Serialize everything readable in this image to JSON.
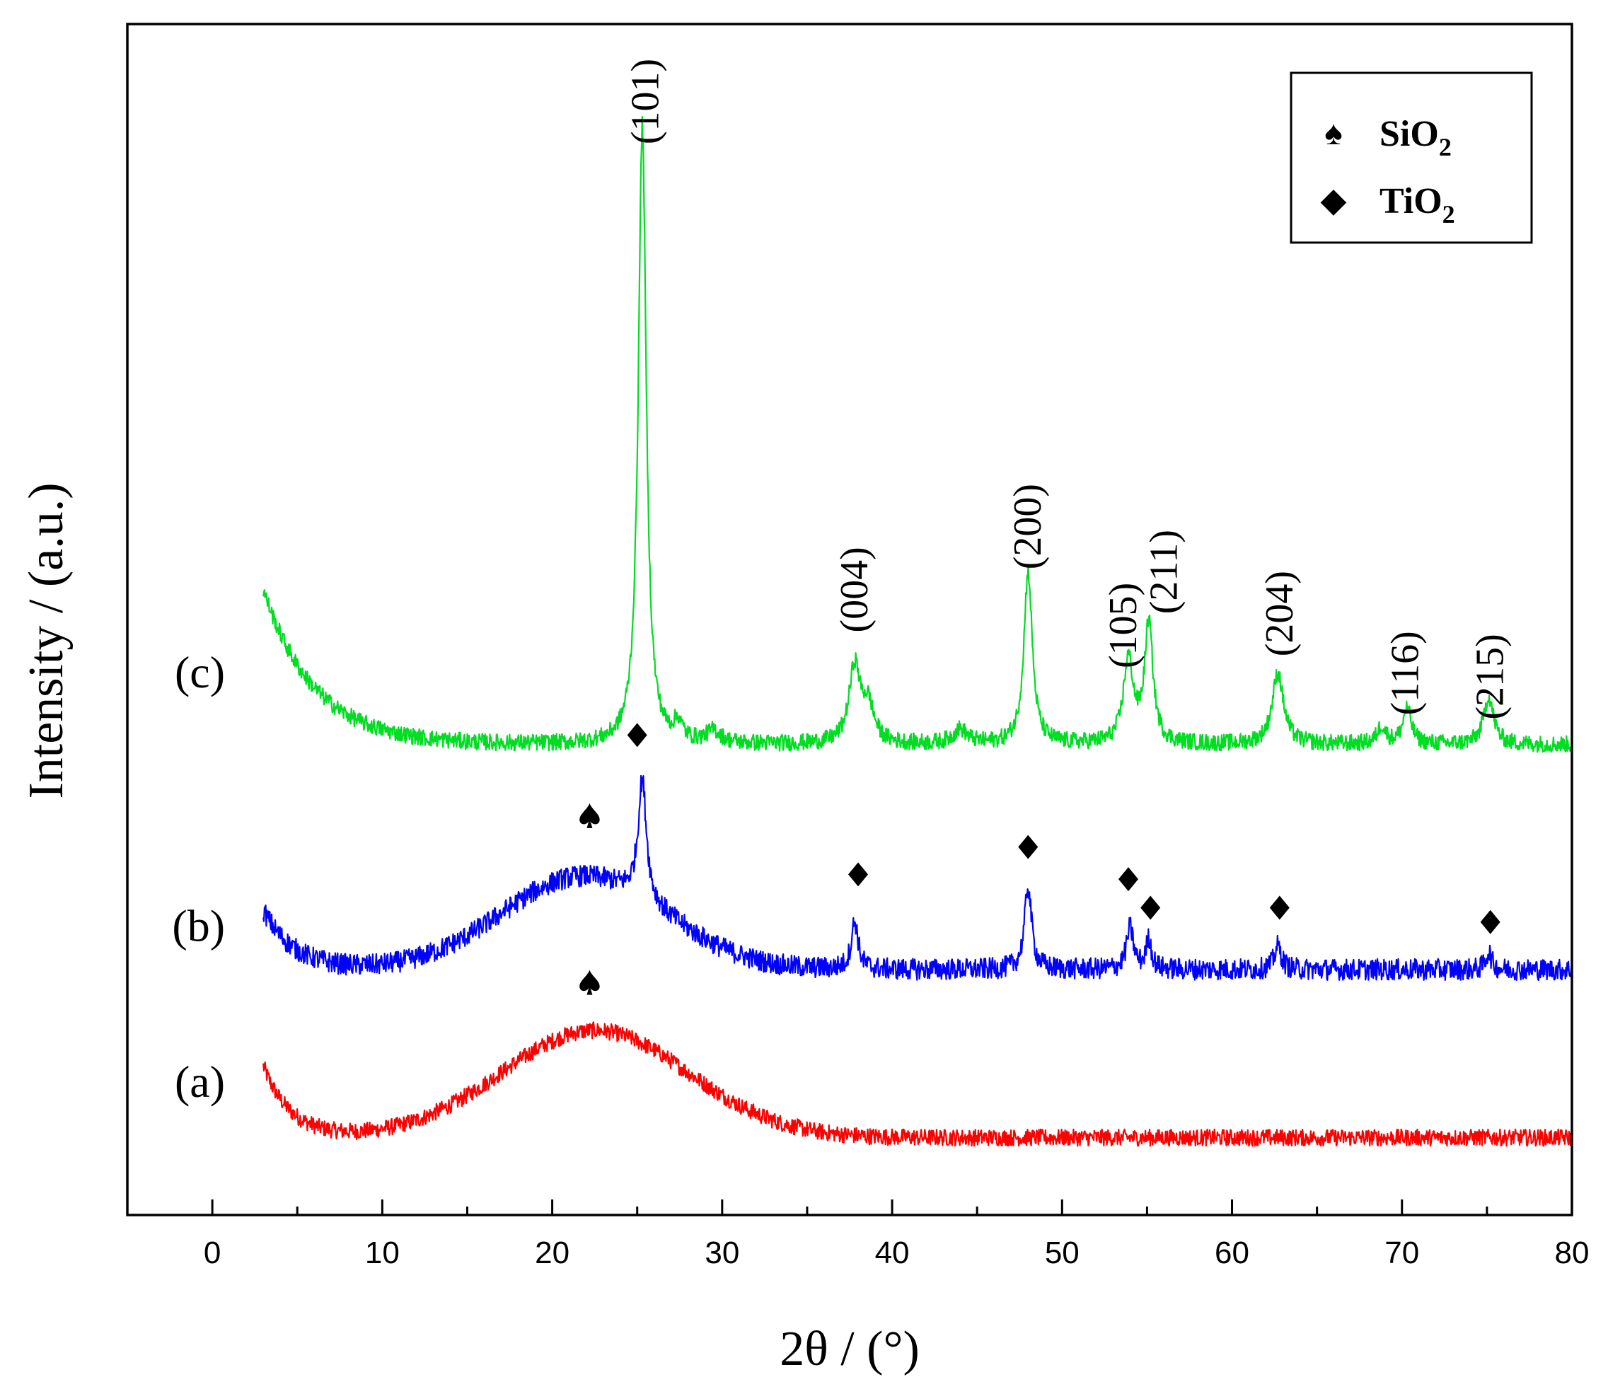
{
  "chart_data": {
    "type": "line",
    "title": "",
    "xlabel": "2θ / (°)",
    "ylabel": "Intensity / (a.u.)",
    "xlim": [
      -5,
      80
    ],
    "ylim": [
      0,
      100
    ],
    "xticks": [
      0,
      10,
      20,
      30,
      40,
      50,
      60,
      70,
      80
    ],
    "x_range_data": [
      3,
      80
    ],
    "grid": false,
    "legend_position": "top-right",
    "legend": [
      {
        "symbol": "♠",
        "label": "SiO",
        "sub": "2",
        "name": "SiO2"
      },
      {
        "symbol": "◆",
        "label": "TiO",
        "sub": "2",
        "name": "TiO2"
      }
    ],
    "series": [
      {
        "name": "(a)",
        "label": "(a)",
        "color": "#ff0000",
        "baseline": 6.5,
        "noise": 0.7,
        "components": [
          {
            "kind": "start_tail",
            "amp": 6.0,
            "decay": 1.6
          },
          {
            "kind": "gauss",
            "center": 22.5,
            "amp": 9.0,
            "width": 5.5
          }
        ],
        "markers": [
          {
            "x": 22.2,
            "y": 19.5,
            "symbol": "spade"
          }
        ]
      },
      {
        "name": "(b)",
        "label": "(b)",
        "color": "#0000ff",
        "baseline": 20.6,
        "noise": 0.9,
        "components": [
          {
            "kind": "start_tail",
            "amp": 5.0,
            "decay": 1.8
          },
          {
            "kind": "gauss",
            "center": 21.8,
            "amp": 7.8,
            "width": 4.8
          },
          {
            "kind": "peak",
            "center": 25.3,
            "amp": 10.0,
            "width": 0.3
          },
          {
            "kind": "peak",
            "center": 37.8,
            "amp": 4.0,
            "width": 0.25
          },
          {
            "kind": "peak",
            "center": 48.0,
            "amp": 7.0,
            "width": 0.25
          },
          {
            "kind": "peak",
            "center": 54.0,
            "amp": 3.5,
            "width": 0.25
          },
          {
            "kind": "peak",
            "center": 55.1,
            "amp": 2.5,
            "width": 0.2
          },
          {
            "kind": "peak",
            "center": 62.7,
            "amp": 2.0,
            "width": 0.25
          },
          {
            "kind": "peak",
            "center": 75.1,
            "amp": 1.5,
            "width": 0.2
          }
        ],
        "markers": [
          {
            "x": 22.2,
            "y": 33.5,
            "symbol": "spade"
          },
          {
            "x": 25.0,
            "y": 40.3,
            "symbol": "diamond"
          },
          {
            "x": 38.0,
            "y": 28.6,
            "symbol": "diamond"
          },
          {
            "x": 48.0,
            "y": 30.9,
            "symbol": "diamond"
          },
          {
            "x": 53.9,
            "y": 28.2,
            "symbol": "diamond"
          },
          {
            "x": 55.2,
            "y": 25.8,
            "symbol": "diamond"
          },
          {
            "x": 62.8,
            "y": 25.8,
            "symbol": "diamond"
          },
          {
            "x": 75.2,
            "y": 24.6,
            "symbol": "diamond"
          }
        ]
      },
      {
        "name": "(c)",
        "label": "(c)",
        "color": "#00dd22",
        "baseline": 39.5,
        "noise": 0.7,
        "components": [
          {
            "kind": "start_tail",
            "amp": 13.0,
            "decay": 3.0
          },
          {
            "kind": "peak",
            "center": 25.3,
            "amp": 52.0,
            "width": 0.28
          },
          {
            "kind": "peak",
            "center": 27.4,
            "amp": 1.5,
            "width": 0.3
          },
          {
            "kind": "peak",
            "center": 29.5,
            "amp": 1.0,
            "width": 0.5
          },
          {
            "kind": "peak",
            "center": 37.8,
            "amp": 6.5,
            "width": 0.4
          },
          {
            "kind": "peak",
            "center": 38.6,
            "amp": 3.0,
            "width": 0.4
          },
          {
            "kind": "peak",
            "center": 44.0,
            "amp": 1.2,
            "width": 0.5
          },
          {
            "kind": "peak",
            "center": 48.0,
            "amp": 14.5,
            "width": 0.3
          },
          {
            "kind": "peak",
            "center": 53.9,
            "amp": 7.0,
            "width": 0.35
          },
          {
            "kind": "peak",
            "center": 55.1,
            "amp": 10.0,
            "width": 0.3
          },
          {
            "kind": "peak",
            "center": 62.7,
            "amp": 6.0,
            "width": 0.4
          },
          {
            "kind": "peak",
            "center": 68.8,
            "amp": 1.5,
            "width": 0.3
          },
          {
            "kind": "peak",
            "center": 70.3,
            "amp": 3.0,
            "width": 0.3
          },
          {
            "kind": "peak",
            "center": 75.1,
            "amp": 4.0,
            "width": 0.35
          }
        ],
        "markers": []
      }
    ],
    "annotations": [
      {
        "text": "(101)",
        "x": 25.5,
        "y": 93.5
      },
      {
        "text": "(004)",
        "x": 37.8,
        "y": 52.5
      },
      {
        "text": "(200)",
        "x": 48.0,
        "y": 57.8
      },
      {
        "text": "(105)",
        "x": 53.6,
        "y": 49.5
      },
      {
        "text": "(211)",
        "x": 56.0,
        "y": 54.0
      },
      {
        "text": "(204)",
        "x": 62.8,
        "y": 50.5
      },
      {
        "text": "(116)",
        "x": 70.2,
        "y": 45.5
      },
      {
        "text": "(215)",
        "x": 75.2,
        "y": 45.2
      }
    ]
  }
}
